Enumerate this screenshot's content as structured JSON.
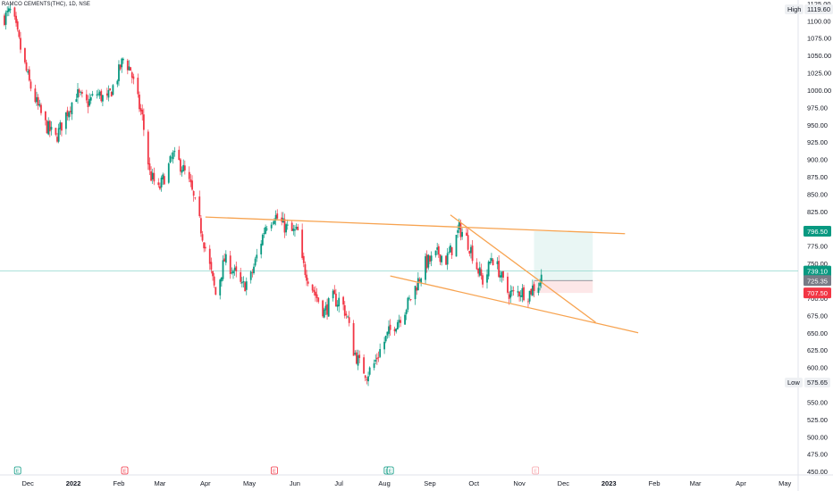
{
  "symbol": "RAMCO CEMENTS(THC), 1D, NSE",
  "high_label": "High",
  "high_value": "1119.60",
  "low_label": "Low",
  "low_value": "575.65",
  "price_badges": [
    {
      "value": 796.5,
      "text": "796.50",
      "color": "#089981"
    },
    {
      "value": 739.1,
      "text": "739.10",
      "color": "#089981"
    },
    {
      "value": 725.35,
      "text": "725.35",
      "color": "#787b86"
    },
    {
      "value": 707.5,
      "text": "707.50",
      "color": "#f23645"
    }
  ],
  "colors": {
    "up": "#089981",
    "down": "#f23645",
    "trendline": "#f7a350",
    "current_price": "#8fd7cd"
  },
  "chart_data": {
    "type": "candlestick",
    "y_ticks": [
      450,
      475,
      500,
      525,
      550,
      575,
      600,
      625,
      650,
      675,
      700,
      725,
      750,
      775,
      800,
      825,
      850,
      875,
      900,
      925,
      950,
      975,
      1000,
      1025,
      1050,
      1075,
      1100,
      1125
    ],
    "ylim": [
      445,
      1130
    ],
    "x_ticks": [
      "Dec",
      "2022",
      "Feb",
      "Mar",
      "Apr",
      "May",
      "Jun",
      "Jul",
      "Aug",
      "Sep",
      "Oct",
      "Nov",
      "Dec",
      "2023",
      "Feb",
      "Mar",
      "Apr",
      "May"
    ],
    "xlim": [
      "2021-11-12",
      "2023-05-10"
    ],
    "price_path": [
      [
        "2021-11-15",
        1105
      ],
      [
        "2021-11-20",
        1115
      ],
      [
        "2021-11-26",
        1060
      ],
      [
        "2021-12-02",
        1010
      ],
      [
        "2021-12-08",
        975
      ],
      [
        "2021-12-13",
        950
      ],
      [
        "2021-12-20",
        930
      ],
      [
        "2021-12-27",
        965
      ],
      [
        "2022-01-03",
        995
      ],
      [
        "2022-01-10",
        980
      ],
      [
        "2022-01-17",
        995
      ],
      [
        "2022-01-24",
        985
      ],
      [
        "2022-01-31",
        1020
      ],
      [
        "2022-02-04",
        1045
      ],
      [
        "2022-02-09",
        1030
      ],
      [
        "2022-02-12",
        1000
      ],
      [
        "2022-02-17",
        960
      ],
      [
        "2022-02-22",
        880
      ],
      [
        "2022-02-28",
        855
      ],
      [
        "2022-03-04",
        875
      ],
      [
        "2022-03-10",
        905
      ],
      [
        "2022-03-16",
        890
      ],
      [
        "2022-03-22",
        860
      ],
      [
        "2022-03-29",
        800
      ],
      [
        "2022-04-04",
        745
      ],
      [
        "2022-04-08",
        705
      ],
      [
        "2022-04-14",
        755
      ],
      [
        "2022-04-20",
        740
      ],
      [
        "2022-04-26",
        715
      ],
      [
        "2022-05-02",
        730
      ],
      [
        "2022-05-08",
        775
      ],
      [
        "2022-05-12",
        805
      ],
      [
        "2022-05-18",
        820
      ],
      [
        "2022-05-24",
        805
      ],
      [
        "2022-05-30",
        795
      ],
      [
        "2022-06-03",
        795
      ],
      [
        "2022-06-06",
        750
      ],
      [
        "2022-06-10",
        730
      ],
      [
        "2022-06-15",
        705
      ],
      [
        "2022-06-21",
        680
      ],
      [
        "2022-06-27",
        700
      ],
      [
        "2022-06-30",
        695
      ],
      [
        "2022-07-02",
        700
      ],
      [
        "2022-07-07",
        670
      ],
      [
        "2022-07-10",
        630
      ],
      [
        "2022-07-15",
        605
      ],
      [
        "2022-07-20",
        590
      ],
      [
        "2022-07-25",
        605
      ],
      [
        "2022-07-29",
        625
      ],
      [
        "2022-08-04",
        650
      ],
      [
        "2022-08-09",
        665
      ],
      [
        "2022-08-14",
        680
      ],
      [
        "2022-08-19",
        700
      ],
      [
        "2022-08-24",
        725
      ],
      [
        "2022-08-29",
        750
      ],
      [
        "2022-09-02",
        755
      ],
      [
        "2022-09-07",
        765
      ],
      [
        "2022-09-12",
        755
      ],
      [
        "2022-09-17",
        775
      ],
      [
        "2022-09-21",
        800
      ],
      [
        "2022-09-25",
        790
      ],
      [
        "2022-09-29",
        770
      ],
      [
        "2022-10-03",
        745
      ],
      [
        "2022-10-08",
        720
      ],
      [
        "2022-10-13",
        760
      ],
      [
        "2022-10-18",
        740
      ],
      [
        "2022-10-23",
        710
      ],
      [
        "2022-10-28",
        705
      ],
      [
        "2022-11-02",
        710
      ],
      [
        "2022-11-07",
        705
      ],
      [
        "2022-11-10",
        715
      ],
      [
        "2022-11-14",
        720
      ],
      [
        "2022-11-17",
        735
      ]
    ],
    "trendlines": [
      {
        "from": [
          "2022-04-01",
          817
        ],
        "to": [
          "2023-01-12",
          793
        ]
      },
      {
        "from": [
          "2022-08-05",
          732
        ],
        "to": [
          "2023-01-21",
          650
        ]
      },
      {
        "from": [
          "2022-09-15",
          820
        ],
        "to": [
          "2022-12-23",
          665
        ]
      }
    ],
    "position": {
      "start": "2022-11-11",
      "end": "2022-12-21",
      "entry": 725.35,
      "target": 796.5,
      "stop": 707.5
    },
    "current_price": 739.1,
    "event_markers": [
      {
        "date": "2021-11-24",
        "label": "E",
        "color": "#089981"
      },
      {
        "date": "2022-02-05",
        "label": "E",
        "color": "#f23645"
      },
      {
        "date": "2022-05-18",
        "label": "E",
        "color": "#f23645"
      },
      {
        "date": "2022-08-03",
        "label": "D",
        "color": "#089981"
      },
      {
        "date": "2022-08-05",
        "label": "E",
        "color": "#089981"
      },
      {
        "date": "2022-11-12",
        "label": "E",
        "color": "#f7a3a9"
      }
    ]
  }
}
